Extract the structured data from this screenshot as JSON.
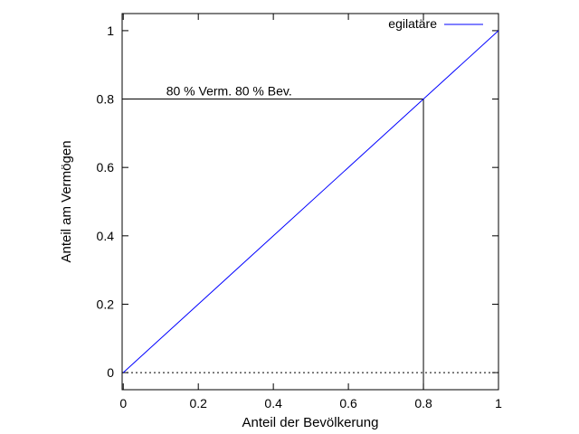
{
  "chart_data": {
    "type": "line",
    "xlabel": "Anteil der Bevölkerung",
    "ylabel": "Anteil am Vermögen",
    "xlim": [
      -0.003,
      1.0
    ],
    "ylim": [
      -0.05,
      1.05
    ],
    "x_ticks": [
      0,
      0.2,
      0.4,
      0.6,
      0.8,
      1
    ],
    "x_tick_labels": [
      "0",
      "0.2",
      "0.4",
      "0.6",
      "0.8",
      "1"
    ],
    "y_ticks": [
      0,
      0.2,
      0.4,
      0.6,
      0.8,
      1
    ],
    "y_tick_labels": [
      "0",
      "0.2",
      "0.4",
      "0.6",
      "0.8",
      "1"
    ],
    "grid": false,
    "legend_position": "top-right",
    "series": [
      {
        "name": "egilatäre",
        "color": "#0000ff",
        "x": [
          0,
          1
        ],
        "y": [
          0,
          1
        ]
      }
    ],
    "zero_line": {
      "y": 0,
      "style": "dotted",
      "color": "#000000"
    },
    "annotations": [
      {
        "text": "80 % Verm. 80 % Bev.",
        "x": 0.1,
        "y": 0.8
      }
    ],
    "reference_lines": [
      {
        "x": [
          0,
          0.8
        ],
        "y": [
          0.8,
          0.8
        ],
        "color": "#000000"
      },
      {
        "x": [
          0.8,
          0.8
        ],
        "y": [
          -0.05,
          0.8
        ],
        "color": "#000000"
      }
    ]
  }
}
